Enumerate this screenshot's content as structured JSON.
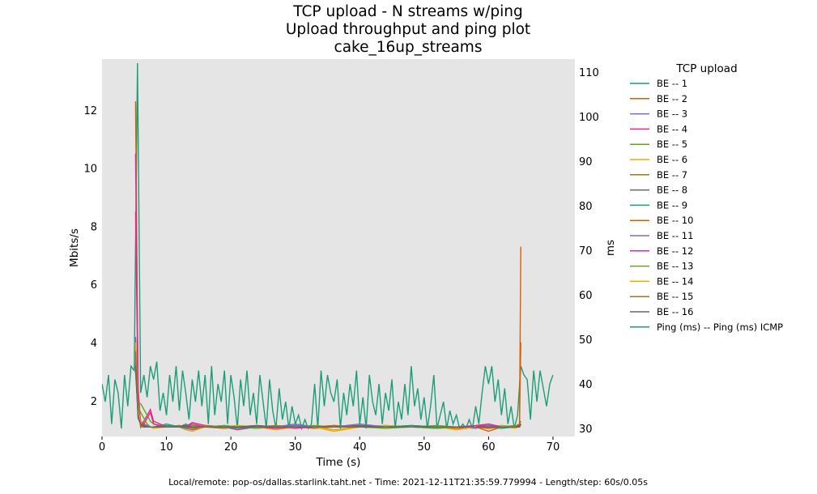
{
  "chart_data": {
    "type": "line",
    "title_lines": [
      "TCP upload - N streams w/ping",
      "Upload throughput and ping plot",
      "cake_16up_streams"
    ],
    "xlabel": "Time (s)",
    "ylabel_left": "Mbits/s",
    "ylabel_right": "ms",
    "xlim": [
      0,
      73.4
    ],
    "ylim_left": [
      0.77,
      13.75
    ],
    "ylim_right": [
      28.2,
      112.9
    ],
    "x_ticks": [
      0,
      10,
      20,
      30,
      40,
      50,
      60,
      70
    ],
    "y_ticks_left": [
      2,
      4,
      6,
      8,
      10,
      12
    ],
    "y_ticks_right": [
      30,
      40,
      50,
      60,
      70,
      80,
      90,
      100,
      110
    ],
    "grid": false,
    "background": "#e5e5e5",
    "legend": {
      "title": "TCP upload",
      "placement": "outside-right"
    },
    "footer": "Local/remote: pop-os/dallas.starlink.taht.net - Time: 2021-12-11T21:35:59.779994 - Length/step: 60s/0.05s",
    "stream_x": [
      5.2,
      5.6,
      6,
      6.5,
      7,
      7.5,
      8,
      10,
      12,
      13,
      14,
      16,
      19,
      21,
      24,
      27,
      30,
      33,
      36,
      40,
      44,
      48,
      52,
      55,
      58,
      60,
      62,
      64,
      64.8,
      65
    ],
    "series": [
      {
        "name": "BE -- 1",
        "color": "#1b9e77",
        "axis": "left",
        "values": [
          3.5,
          1.6,
          1.2,
          1.1,
          1.1,
          1.1,
          1.1,
          1.15,
          1.1,
          1.2,
          1.1,
          1.1,
          1.1,
          1.15,
          1.1,
          1.05,
          1.1,
          1.1,
          1.15,
          1.1,
          1.1,
          1.1,
          1.05,
          1.1,
          1.1,
          1.1,
          1.15,
          1.1,
          1.2,
          1.3
        ]
      },
      {
        "name": "BE -- 2",
        "color": "#d95f02",
        "axis": "left",
        "values": [
          12.3,
          2.0,
          1.3,
          1.2,
          1.1,
          1.1,
          1.1,
          1.1,
          1.15,
          1.1,
          1.05,
          1.1,
          1.1,
          1.1,
          1.15,
          1.1,
          1.1,
          1.05,
          1.1,
          1.15,
          1.1,
          1.1,
          1.1,
          1.05,
          1.1,
          0.95,
          1.1,
          1.1,
          1.2,
          7.3
        ]
      },
      {
        "name": "BE -- 3",
        "color": "#7570b3",
        "axis": "left",
        "values": [
          4.2,
          1.8,
          1.3,
          1.2,
          1.15,
          1.1,
          1.1,
          1.1,
          1.1,
          1.05,
          1.0,
          1.1,
          1.15,
          1.1,
          1.1,
          1.1,
          1.2,
          1.1,
          1.1,
          1.1,
          1.15,
          1.1,
          1.1,
          1.1,
          1.05,
          1.15,
          1.1,
          1.1,
          1.1,
          1.2
        ]
      },
      {
        "name": "BE -- 4",
        "color": "#e7298a",
        "axis": "left",
        "values": [
          10.5,
          2.5,
          1.1,
          1.3,
          1.5,
          1.7,
          1.3,
          1.1,
          1.1,
          1.1,
          1.25,
          1.15,
          1.1,
          1.0,
          1.1,
          1.1,
          1.05,
          1.1,
          1.1,
          1.15,
          1.1,
          1.1,
          1.1,
          1.1,
          1.15,
          1.2,
          1.1,
          1.1,
          1.15,
          1.2
        ]
      },
      {
        "name": "BE -- 5",
        "color": "#66a61e",
        "axis": "left",
        "values": [
          3.2,
          1.9,
          1.9,
          1.7,
          1.5,
          1.3,
          1.2,
          1.1,
          1.1,
          1.1,
          1.15,
          1.1,
          1.1,
          1.1,
          1.05,
          1.1,
          1.1,
          1.15,
          1.1,
          1.1,
          1.05,
          1.1,
          1.15,
          1.1,
          1.1,
          1.1,
          1.1,
          1.15,
          1.1,
          1.2
        ]
      },
      {
        "name": "BE -- 6",
        "color": "#e6ab02",
        "axis": "left",
        "values": [
          4.0,
          1.7,
          1.3,
          1.1,
          1.1,
          1.1,
          1.05,
          1.1,
          1.1,
          1.0,
          0.95,
          1.1,
          1.1,
          1.15,
          1.1,
          1.0,
          1.1,
          1.1,
          0.95,
          1.1,
          1.15,
          1.1,
          1.1,
          1.0,
          1.1,
          1.1,
          1.15,
          1.05,
          1.1,
          1.2
        ]
      },
      {
        "name": "BE -- 7",
        "color": "#a6761d",
        "axis": "left",
        "values": [
          3.8,
          1.5,
          1.2,
          1.1,
          1.1,
          1.1,
          1.1,
          1.1,
          1.15,
          1.1,
          1.1,
          1.1,
          1.05,
          1.1,
          1.1,
          1.15,
          1.1,
          1.1,
          1.1,
          1.1,
          1.1,
          1.15,
          1.1,
          1.1,
          1.1,
          1.05,
          1.1,
          1.1,
          1.1,
          1.2
        ]
      },
      {
        "name": "BE -- 8",
        "color": "#666666",
        "axis": "left",
        "values": [
          3.3,
          1.4,
          1.2,
          1.15,
          1.1,
          1.1,
          1.1,
          1.1,
          1.1,
          1.15,
          1.1,
          1.1,
          1.1,
          1.1,
          1.15,
          1.1,
          1.1,
          1.1,
          1.1,
          1.15,
          1.1,
          1.1,
          1.1,
          1.1,
          1.1,
          1.1,
          1.1,
          1.1,
          1.15,
          1.2
        ]
      },
      {
        "name": "BE -- 9",
        "color": "#1b9e77",
        "axis": "left",
        "values": [
          3.0,
          1.5,
          1.2,
          1.1,
          1.1,
          1.1,
          1.1,
          1.2,
          1.1,
          1.1,
          1.1,
          1.1,
          1.1,
          1.05,
          1.1,
          1.1,
          1.15,
          1.1,
          1.1,
          1.1,
          1.1,
          1.15,
          1.1,
          1.1,
          1.1,
          1.1,
          1.05,
          1.1,
          1.1,
          1.2
        ]
      },
      {
        "name": "BE -- 10",
        "color": "#d95f02",
        "axis": "left",
        "values": [
          3.6,
          1.6,
          1.1,
          1.1,
          1.1,
          1.1,
          1.1,
          1.1,
          1.1,
          1.1,
          1.05,
          1.15,
          1.1,
          1.1,
          1.1,
          1.1,
          1.1,
          1.1,
          1.15,
          1.1,
          1.1,
          1.1,
          1.1,
          1.1,
          1.1,
          1.05,
          1.1,
          1.1,
          1.2,
          4.0
        ]
      },
      {
        "name": "BE -- 11",
        "color": "#7570b3",
        "axis": "left",
        "values": [
          3.4,
          1.6,
          1.2,
          1.1,
          1.1,
          1.1,
          1.1,
          1.1,
          1.1,
          1.05,
          1.1,
          1.1,
          1.1,
          1.1,
          1.1,
          1.1,
          1.15,
          1.1,
          1.1,
          1.2,
          1.1,
          1.1,
          1.1,
          1.1,
          1.1,
          1.15,
          1.1,
          1.1,
          1.1,
          1.2
        ]
      },
      {
        "name": "BE -- 12",
        "color": "#e7298a",
        "axis": "left",
        "values": [
          8.5,
          2.0,
          1.2,
          1.2,
          1.4,
          1.6,
          1.2,
          1.1,
          1.1,
          1.1,
          1.2,
          1.1,
          1.1,
          1.1,
          1.1,
          1.05,
          1.1,
          1.1,
          1.1,
          1.1,
          1.1,
          1.1,
          1.1,
          1.1,
          1.1,
          1.2,
          1.1,
          1.1,
          1.1,
          1.2
        ]
      },
      {
        "name": "BE -- 13",
        "color": "#66a61e",
        "axis": "left",
        "values": [
          3.1,
          1.8,
          1.6,
          1.4,
          1.2,
          1.1,
          1.1,
          1.1,
          1.1,
          1.1,
          1.1,
          1.1,
          1.15,
          1.1,
          1.1,
          1.1,
          1.1,
          1.1,
          1.1,
          1.1,
          1.1,
          1.1,
          1.05,
          1.1,
          1.1,
          1.1,
          1.1,
          1.1,
          1.1,
          1.2
        ]
      },
      {
        "name": "BE -- 14",
        "color": "#e6ab02",
        "axis": "left",
        "values": [
          3.9,
          1.7,
          1.2,
          1.1,
          1.1,
          1.1,
          1.1,
          1.1,
          1.1,
          1.1,
          1.1,
          1.1,
          1.1,
          1.1,
          1.1,
          1.1,
          1.1,
          1.1,
          1.0,
          1.1,
          1.1,
          1.1,
          1.1,
          1.1,
          1.1,
          1.1,
          1.1,
          1.1,
          1.1,
          1.2
        ]
      },
      {
        "name": "BE -- 15",
        "color": "#a6761d",
        "axis": "left",
        "values": [
          3.7,
          1.5,
          1.2,
          1.1,
          1.1,
          1.1,
          1.1,
          1.1,
          1.1,
          1.1,
          1.1,
          1.1,
          1.1,
          1.1,
          1.1,
          1.1,
          1.1,
          1.1,
          1.1,
          1.1,
          1.1,
          1.1,
          1.1,
          1.1,
          1.1,
          1.1,
          1.1,
          1.1,
          1.1,
          1.2
        ]
      },
      {
        "name": "BE -- 16",
        "color": "#666666",
        "axis": "left",
        "values": [
          3.2,
          1.4,
          1.2,
          1.1,
          1.1,
          1.1,
          1.1,
          1.1,
          1.1,
          1.1,
          1.1,
          1.1,
          1.1,
          1.1,
          1.1,
          1.1,
          1.1,
          1.1,
          1.1,
          1.1,
          1.1,
          1.1,
          1.1,
          1.1,
          1.1,
          1.1,
          1.1,
          1.1,
          1.1,
          1.2
        ]
      },
      {
        "name": "Ping (ms) -- Ping (ms) ICMP",
        "color": "#1b9e77",
        "axis": "right",
        "x_start": 0,
        "x_step": 0.5,
        "values": [
          40,
          36,
          42,
          31,
          41,
          38,
          30,
          42,
          35,
          44,
          43,
          112,
          38,
          42,
          37,
          44,
          41,
          45,
          34,
          38,
          33,
          42,
          36,
          44,
          34,
          43,
          38,
          32,
          41,
          36,
          43,
          35,
          42,
          31,
          44,
          33,
          40,
          36,
          43,
          31,
          42,
          37,
          30,
          41,
          35,
          43,
          33,
          38,
          31,
          42,
          36,
          30,
          41,
          34,
          30,
          39,
          32,
          36,
          30,
          35,
          31,
          33,
          30,
          32,
          30,
          31,
          40,
          30,
          43,
          35,
          42,
          38,
          36,
          41,
          30,
          38,
          33,
          40,
          35,
          43,
          31,
          37,
          30,
          42,
          36,
          33,
          40,
          31,
          38,
          34,
          41,
          30,
          36,
          32,
          40,
          33,
          44,
          35,
          39,
          32,
          37,
          30,
          35,
          42,
          30,
          33,
          36,
          30,
          34,
          31,
          33,
          30,
          31,
          30,
          32,
          30,
          35,
          31,
          38,
          44,
          40,
          44,
          36,
          41,
          33,
          39,
          31,
          35,
          30,
          33,
          44,
          42,
          41,
          32,
          43,
          36,
          43,
          39,
          35,
          40,
          42
        ]
      }
    ]
  }
}
